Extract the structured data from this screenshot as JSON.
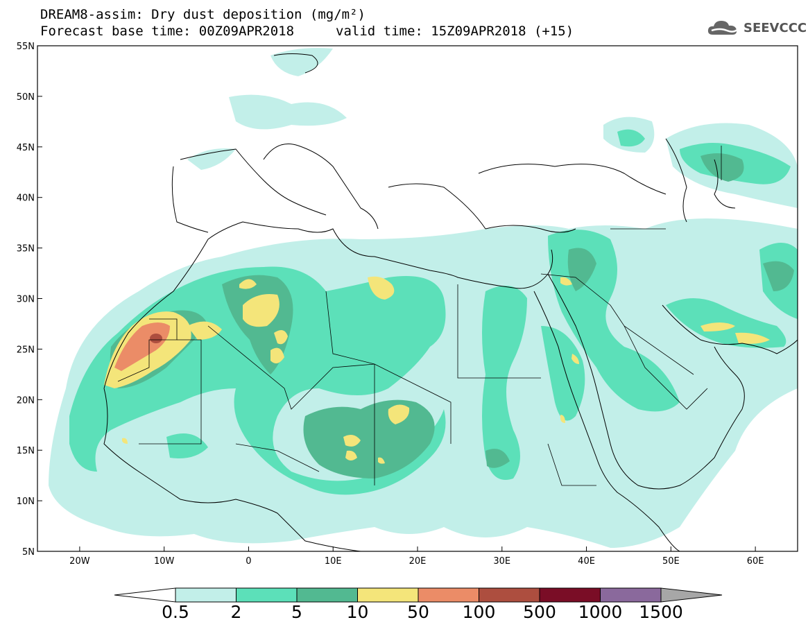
{
  "title": {
    "line1": "DREAM8-assim: Dry dust deposition (mg/m²)",
    "forecast": "Forecast base time: 00Z09APR2018",
    "valid": "valid time: 15Z09APR2018 (+15)"
  },
  "logo": {
    "text": "SEEVCCC",
    "icon": "cloud-logo-icon"
  },
  "map": {
    "lon_range": [
      -25,
      65
    ],
    "lat_range": [
      5,
      55
    ],
    "lon_ticks": [
      {
        "value": -20,
        "label": "20W"
      },
      {
        "value": -10,
        "label": "10W"
      },
      {
        "value": 0,
        "label": "0"
      },
      {
        "value": 10,
        "label": "10E"
      },
      {
        "value": 20,
        "label": "20E"
      },
      {
        "value": 30,
        "label": "30E"
      },
      {
        "value": 40,
        "label": "40E"
      },
      {
        "value": 50,
        "label": "50E"
      },
      {
        "value": 60,
        "label": "60E"
      }
    ],
    "lat_ticks": [
      {
        "value": 5,
        "label": "5N"
      },
      {
        "value": 10,
        "label": "10N"
      },
      {
        "value": 15,
        "label": "15N"
      },
      {
        "value": 20,
        "label": "20N"
      },
      {
        "value": 25,
        "label": "25N"
      },
      {
        "value": 30,
        "label": "30N"
      },
      {
        "value": 35,
        "label": "35N"
      },
      {
        "value": 40,
        "label": "40N"
      },
      {
        "value": 45,
        "label": "45N"
      },
      {
        "value": 50,
        "label": "50N"
      },
      {
        "value": 55,
        "label": "55N"
      }
    ]
  },
  "colorbar": {
    "colors": [
      "#c2efe9",
      "#5ce0b9",
      "#52b991",
      "#f4e57a",
      "#eb8c67",
      "#ad4e3f",
      "#7a0d26",
      "#8a699c"
    ],
    "under_color": "#ffffff",
    "over_color": "#a7a7a7",
    "labels": [
      "0.5",
      "2",
      "5",
      "10",
      "50",
      "100",
      "500",
      "1000",
      "1500"
    ]
  }
}
